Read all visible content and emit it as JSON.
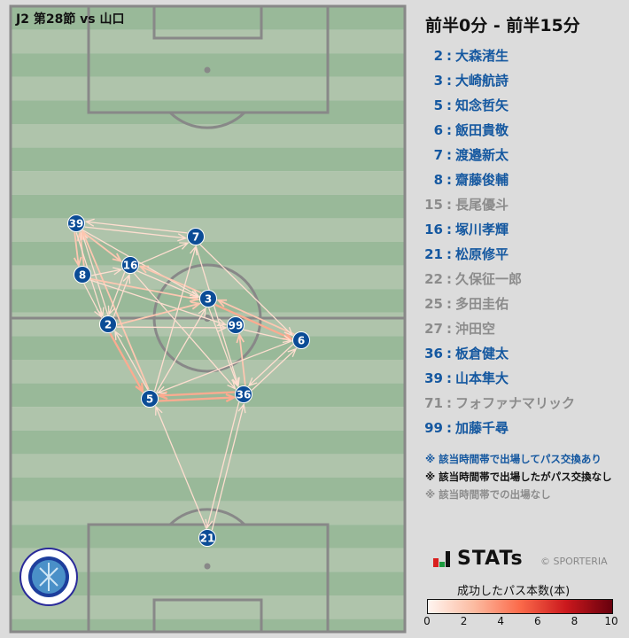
{
  "header": {
    "match": "J2 第28節 vs 山口",
    "period": "前半0分 - 前半15分"
  },
  "colors": {
    "active": "#1558a0",
    "inactive": "#8c8c8c",
    "no_pass": "#111111",
    "node": "#0b4c96"
  },
  "players": [
    {
      "num": "2",
      "name": "大森渚生",
      "status": "active"
    },
    {
      "num": "3",
      "name": "大崎航詩",
      "status": "active"
    },
    {
      "num": "5",
      "name": "知念哲矢",
      "status": "active"
    },
    {
      "num": "6",
      "name": "飯田貴敬",
      "status": "active"
    },
    {
      "num": "7",
      "name": "渡邉新太",
      "status": "active"
    },
    {
      "num": "8",
      "name": "齋藤俊輔",
      "status": "active"
    },
    {
      "num": "15",
      "name": "長尾優斗",
      "status": "inactive"
    },
    {
      "num": "16",
      "name": "塚川孝輝",
      "status": "active"
    },
    {
      "num": "21",
      "name": "松原修平",
      "status": "active"
    },
    {
      "num": "22",
      "name": "久保征一郎",
      "status": "inactive"
    },
    {
      "num": "25",
      "name": "多田圭佑",
      "status": "inactive"
    },
    {
      "num": "27",
      "name": "沖田空",
      "status": "inactive"
    },
    {
      "num": "36",
      "name": "板倉健太",
      "status": "active"
    },
    {
      "num": "39",
      "name": "山本隼大",
      "status": "active"
    },
    {
      "num": "71",
      "name": "フォファナマリック",
      "status": "inactive"
    },
    {
      "num": "99",
      "name": "加藤千尋",
      "status": "active"
    }
  ],
  "notes": [
    {
      "text": "※ 該当時間帯で出場してパス交換あり",
      "status": "active"
    },
    {
      "text": "※ 該当時間帯で出場したがパス交換なし",
      "status": "no_pass"
    },
    {
      "text": "※ 該当時間帯での出場なし",
      "status": "inactive"
    }
  ],
  "branding": {
    "stats": "STATs",
    "copyright": "© SPORTERIA",
    "club_logo": "FC MITO HOLLY HOCK"
  },
  "colorbar": {
    "title": "成功したパス本数(本)",
    "ticks": [
      "0",
      "2",
      "4",
      "6",
      "8",
      "10"
    ],
    "min": 0,
    "max": 10
  },
  "passes": [
    {
      "from": "39",
      "to": "7",
      "count": 1
    },
    {
      "from": "7",
      "to": "39",
      "count": 1
    },
    {
      "from": "39",
      "to": "16",
      "count": 2
    },
    {
      "from": "39",
      "to": "8",
      "count": 2
    },
    {
      "from": "8",
      "to": "39",
      "count": 2
    },
    {
      "from": "39",
      "to": "2",
      "count": 1
    },
    {
      "from": "2",
      "to": "39",
      "count": 1
    },
    {
      "from": "5",
      "to": "39",
      "count": 2
    },
    {
      "from": "39",
      "to": "3",
      "count": 1
    },
    {
      "from": "16",
      "to": "7",
      "count": 1
    },
    {
      "from": "8",
      "to": "16",
      "count": 1
    },
    {
      "from": "8",
      "to": "3",
      "count": 2
    },
    {
      "from": "8",
      "to": "2",
      "count": 1
    },
    {
      "from": "8",
      "to": "99",
      "count": 1
    },
    {
      "from": "3",
      "to": "16",
      "count": 2
    },
    {
      "from": "16",
      "to": "3",
      "count": 1
    },
    {
      "from": "2",
      "to": "16",
      "count": 1
    },
    {
      "from": "16",
      "to": "2",
      "count": 1
    },
    {
      "from": "16",
      "to": "36",
      "count": 1
    },
    {
      "from": "2",
      "to": "3",
      "count": 2
    },
    {
      "from": "2",
      "to": "5",
      "count": 3
    },
    {
      "from": "5",
      "to": "2",
      "count": 1
    },
    {
      "from": "3",
      "to": "6",
      "count": 3
    },
    {
      "from": "6",
      "to": "3",
      "count": 2
    },
    {
      "from": "99",
      "to": "6",
      "count": 1
    },
    {
      "from": "7",
      "to": "6",
      "count": 1
    },
    {
      "from": "7",
      "to": "36",
      "count": 1
    },
    {
      "from": "3",
      "to": "36",
      "count": 1
    },
    {
      "from": "36",
      "to": "99",
      "count": 2
    },
    {
      "from": "5",
      "to": "36",
      "count": 3
    },
    {
      "from": "36",
      "to": "5",
      "count": 3
    },
    {
      "from": "6",
      "to": "36",
      "count": 1
    },
    {
      "from": "36",
      "to": "6",
      "count": 1
    },
    {
      "from": "6",
      "to": "5",
      "count": 1
    },
    {
      "from": "5",
      "to": "7",
      "count": 1
    },
    {
      "from": "5",
      "to": "3",
      "count": 1
    },
    {
      "from": "21",
      "to": "5",
      "count": 1
    },
    {
      "from": "21",
      "to": "36",
      "count": 1
    },
    {
      "from": "36",
      "to": "21",
      "count": 1
    },
    {
      "from": "2",
      "to": "99",
      "count": 1
    }
  ]
}
